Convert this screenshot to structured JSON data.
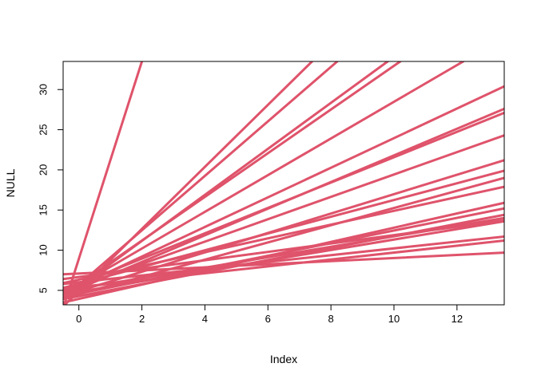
{
  "chart_data": {
    "type": "line",
    "title": "",
    "xlabel": "Index",
    "ylabel": "NULL",
    "xlim": [
      -0.5,
      13.5
    ],
    "ylim": [
      3.2,
      33.5
    ],
    "x_ticks": [
      0,
      2,
      4,
      6,
      8,
      10,
      12
    ],
    "y_ticks": [
      5,
      10,
      15,
      20,
      25,
      30
    ],
    "grid": false,
    "legend": "none",
    "line_color": "#DF536B",
    "series": [
      {
        "x": [
          -0.5,
          2.0
        ],
        "y": [
          2.8,
          33.5
        ]
      },
      {
        "x": [
          -0.5,
          7.4
        ],
        "y": [
          3.0,
          33.5
        ]
      },
      {
        "x": [
          -0.5,
          8.2
        ],
        "y": [
          4.0,
          33.5
        ]
      },
      {
        "x": [
          -0.5,
          9.8
        ],
        "y": [
          4.0,
          33.5
        ]
      },
      {
        "x": [
          -0.5,
          10.2
        ],
        "y": [
          4.4,
          33.5
        ]
      },
      {
        "x": [
          -0.5,
          12.2
        ],
        "y": [
          4.5,
          33.5
        ]
      },
      {
        "x": [
          -0.5,
          13.5
        ],
        "y": [
          4.6,
          30.4
        ]
      },
      {
        "x": [
          -0.5,
          13.5
        ],
        "y": [
          4.4,
          27.6
        ]
      },
      {
        "x": [
          -0.5,
          13.5
        ],
        "y": [
          5.0,
          27.1
        ]
      },
      {
        "x": [
          -0.5,
          13.5
        ],
        "y": [
          4.8,
          24.3
        ]
      },
      {
        "x": [
          -0.5,
          13.5
        ],
        "y": [
          4.3,
          21.2
        ]
      },
      {
        "x": [
          -0.5,
          13.5
        ],
        "y": [
          5.3,
          19.9
        ]
      },
      {
        "x": [
          -0.5,
          13.5
        ],
        "y": [
          4.0,
          19.0
        ]
      },
      {
        "x": [
          -0.5,
          13.5
        ],
        "y": [
          5.9,
          17.9
        ]
      },
      {
        "x": [
          -0.5,
          13.5
        ],
        "y": [
          3.5,
          15.9
        ]
      },
      {
        "x": [
          -0.5,
          13.5
        ],
        "y": [
          4.2,
          15.2
        ]
      },
      {
        "x": [
          -0.5,
          13.5
        ],
        "y": [
          3.9,
          14.4
        ]
      },
      {
        "x": [
          -0.5,
          13.5
        ],
        "y": [
          4.9,
          14.0
        ]
      },
      {
        "x": [
          -0.5,
          13.5
        ],
        "y": [
          4.5,
          13.6
        ]
      },
      {
        "x": [
          -0.5,
          13.5
        ],
        "y": [
          6.4,
          13.7
        ]
      },
      {
        "x": [
          -0.5,
          13.5
        ],
        "y": [
          5.8,
          11.7
        ]
      },
      {
        "x": [
          -0.5,
          13.5
        ],
        "y": [
          5.2,
          11.2
        ]
      },
      {
        "x": [
          -0.5,
          13.5
        ],
        "y": [
          7.0,
          9.7
        ]
      }
    ]
  }
}
